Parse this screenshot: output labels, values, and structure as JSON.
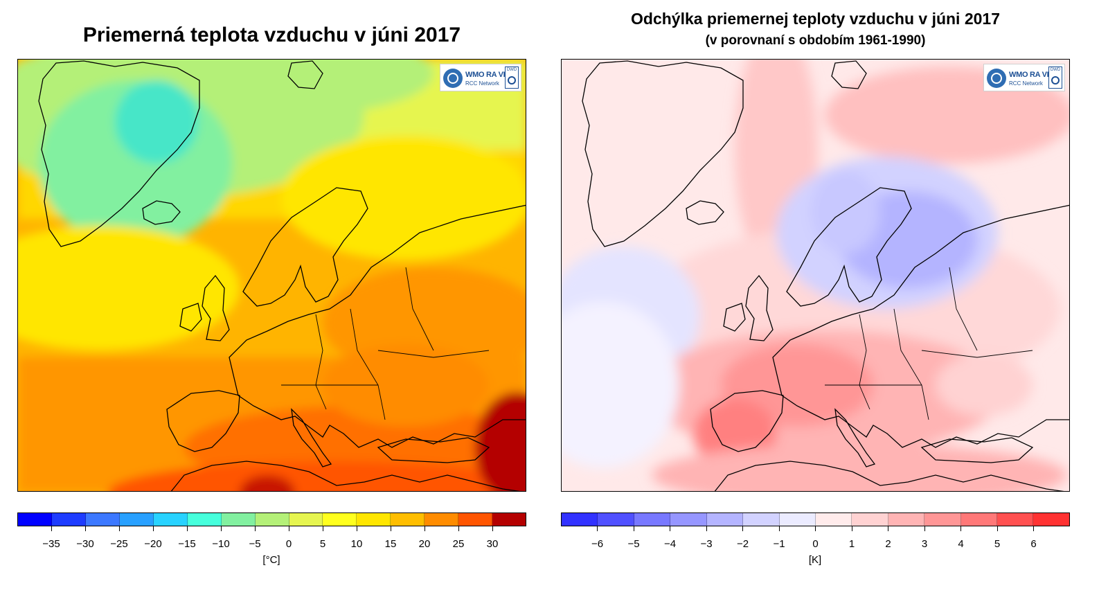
{
  "left_panel": {
    "title": "Priemerná teplota vzduchu v júni 2017",
    "logo": {
      "line1": "WMO RA VI",
      "line2": "RCC Network",
      "badge": "DWD"
    },
    "colorbar": {
      "colors": [
        "#0000ff",
        "#1e3cff",
        "#3c78ff",
        "#28a0ff",
        "#28d2ff",
        "#46ffdc",
        "#82f0a0",
        "#b4f078",
        "#e6f550",
        "#ffff1e",
        "#ffe600",
        "#ffbe00",
        "#ff8c00",
        "#ff5500",
        "#b40000"
      ],
      "tick_labels": [
        "−35",
        "−30",
        "−25",
        "−20",
        "−15",
        "−10",
        "−5",
        "0",
        "5",
        "10",
        "15",
        "20",
        "25",
        "30"
      ],
      "unit": "[°C]"
    }
  },
  "right_panel": {
    "title": "Odchýlka priemernej teploty vzduchu v júni 2017",
    "subtitle": "(v porovnaní s obdobím 1961-1990)",
    "logo": {
      "line1": "WMO RA VI",
      "line2": "RCC Network",
      "badge": "DWD"
    },
    "colorbar": {
      "colors": [
        "#3232ff",
        "#5050ff",
        "#7878ff",
        "#9696ff",
        "#b4b4ff",
        "#d2d2ff",
        "#ebebff",
        "#ffebeb",
        "#ffd2d2",
        "#ffb4b4",
        "#ff9696",
        "#ff7878",
        "#ff5050",
        "#ff3232"
      ],
      "tick_labels": [
        "−6",
        "−5",
        "−4",
        "−3",
        "−2",
        "−1",
        "0",
        "1",
        "2",
        "3",
        "4",
        "5",
        "6"
      ],
      "unit": "[K]"
    }
  },
  "colors": {
    "left_base": "#ffb400",
    "right_base": "#ffe9e9",
    "coast": "#000000"
  }
}
